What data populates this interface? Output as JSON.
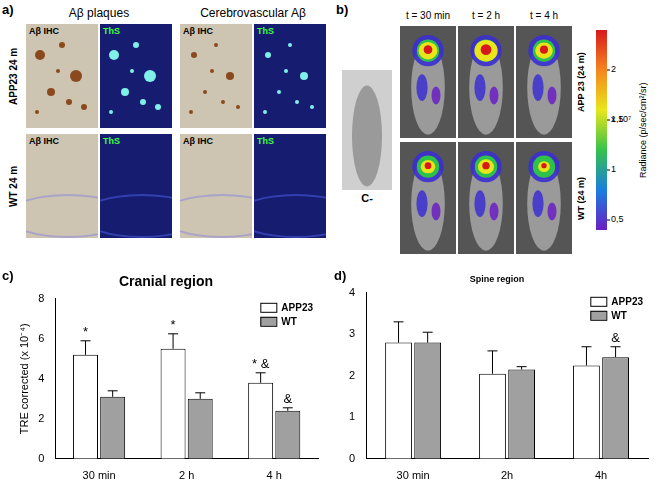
{
  "panel_a": {
    "label": "a)",
    "columns": [
      "Aβ plaques",
      "Cerebrovascular Aβ"
    ],
    "rows": [
      "APP23 24 m",
      "WT 24 m"
    ],
    "stains": [
      "Aβ IHC",
      "ThS"
    ]
  },
  "panel_b": {
    "label": "b)",
    "control": "C-",
    "times": [
      "t = 30 min",
      "t = 2 h",
      "t = 4 h"
    ],
    "rows": [
      "APP 23 (24 m)",
      "WT (24 m)"
    ],
    "colorbar": {
      "label": "Radiance",
      "units": "(p/sec/cm²/sr)",
      "multiplier": "x 10⁷",
      "range": [
        0.4,
        2.4
      ],
      "ticks": [
        {
          "value": 0.5,
          "label": "0,5"
        },
        1,
        {
          "value": 1.5,
          "label": "1,5"
        },
        2
      ]
    }
  },
  "chart_data": [
    {
      "type": "bar",
      "panel_label": "c)",
      "title": "Cranial region",
      "y_label": "TRE corrected (x 10⁻⁴)",
      "categories": [
        "30 min",
        "2 h",
        "4 h"
      ],
      "series": [
        {
          "name": "APP23",
          "color": "#ffffff",
          "values": [
            5.2,
            5.5,
            3.8
          ],
          "errors": [
            0.7,
            0.75,
            0.5
          ]
        },
        {
          "name": "WT",
          "color": "#a0a0a0",
          "values": [
            3.1,
            3.0,
            2.4
          ],
          "errors": [
            0.3,
            0.3,
            0.15
          ]
        }
      ],
      "ylim": [
        0,
        8
      ],
      "yticks": [
        0,
        2,
        4,
        6,
        8
      ],
      "legend": "upper right",
      "annotations": [
        {
          "series": "APP23",
          "category": "30 min",
          "text": "*"
        },
        {
          "series": "APP23",
          "category": "2 h",
          "text": "*"
        },
        {
          "series": "APP23",
          "category": "4 h",
          "text": "* &"
        },
        {
          "series": "WT",
          "category": "4 h",
          "text": "&"
        }
      ]
    },
    {
      "type": "bar",
      "panel_label": "d)",
      "title": "Spine region",
      "categories": [
        "30 min",
        "2h",
        "4h"
      ],
      "series": [
        {
          "name": "APP23",
          "color": "#ffffff",
          "values": [
            2.8,
            2.05,
            2.25
          ],
          "errors": [
            0.5,
            0.55,
            0.45
          ]
        },
        {
          "name": "WT",
          "color": "#a0a0a0",
          "values": [
            2.8,
            2.15,
            2.45
          ],
          "errors": [
            0.25,
            0.07,
            0.25
          ]
        }
      ],
      "ylim": [
        0,
        4
      ],
      "yticks": [
        0,
        1,
        2,
        3,
        4
      ],
      "legend": "upper right",
      "annotations": [
        {
          "series": "WT",
          "category": "4h",
          "text": "&"
        }
      ]
    }
  ]
}
